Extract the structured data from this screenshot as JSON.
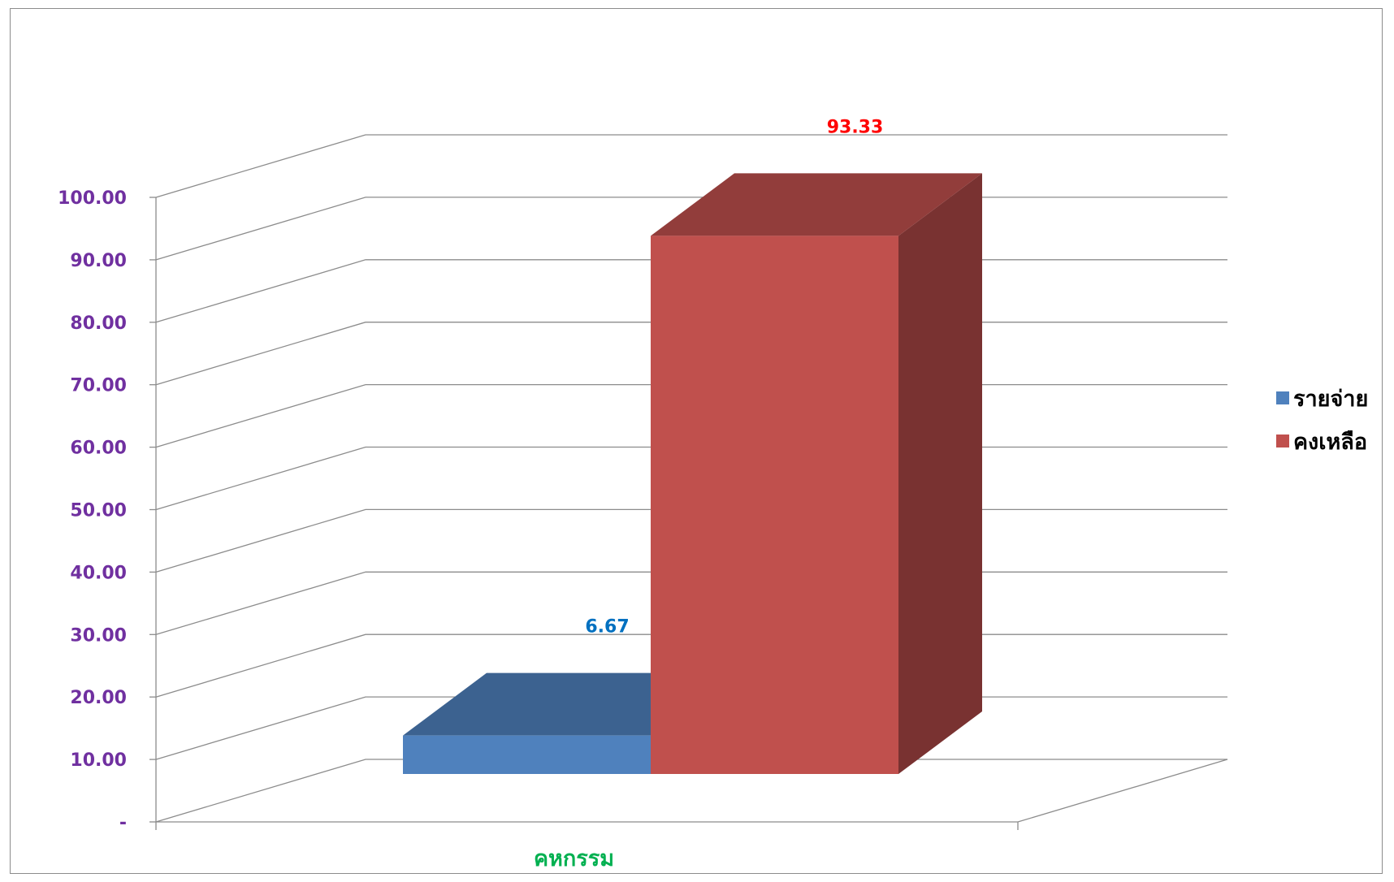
{
  "chart_data": {
    "type": "bar",
    "categories": [
      "คหกรรม"
    ],
    "series": [
      {
        "name": "รายจ่าย",
        "values": [
          6.67
        ],
        "color": "#4f81bd",
        "label_color": "#0070c0"
      },
      {
        "name": "คงเหลือ",
        "values": [
          93.33
        ],
        "color": "#c0504d",
        "label_color": "#ff0000"
      }
    ],
    "ylim": [
      0,
      100
    ],
    "y_ticks": [
      {
        "value": 0,
        "label": "-"
      },
      {
        "value": 10,
        "label": "10.00"
      },
      {
        "value": 20,
        "label": "20.00"
      },
      {
        "value": 30,
        "label": "30.00"
      },
      {
        "value": 40,
        "label": "40.00"
      },
      {
        "value": 50,
        "label": "50.00"
      },
      {
        "value": 60,
        "label": "60.00"
      },
      {
        "value": 70,
        "label": "70.00"
      },
      {
        "value": 80,
        "label": "80.00"
      },
      {
        "value": 90,
        "label": "90.00"
      },
      {
        "value": 100,
        "label": "100.00"
      }
    ],
    "style": "3d-clustered-column",
    "grid": true,
    "legend_position": "right",
    "title": "",
    "xlabel": "",
    "ylabel": ""
  }
}
